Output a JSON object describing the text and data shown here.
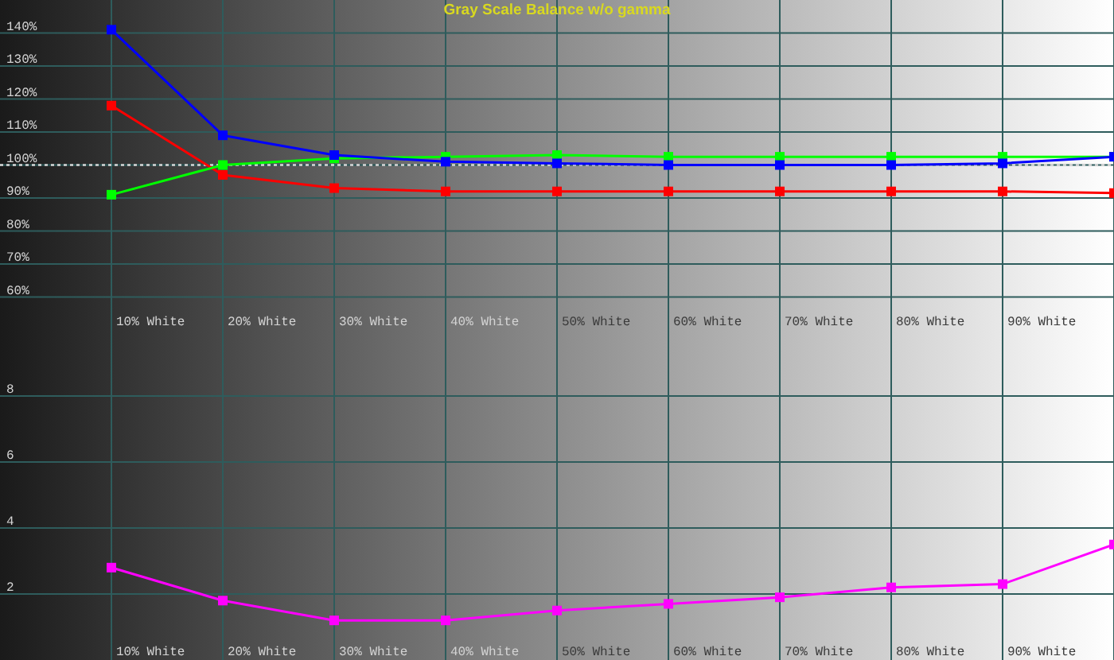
{
  "chart_data": [
    {
      "type": "line",
      "title": "Gray Scale Balance w/o gamma",
      "categories": [
        "10% White",
        "20% White",
        "30% White",
        "40% White",
        "50% White",
        "60% White",
        "70% White",
        "80% White",
        "90% White",
        null
      ],
      "series": [
        {
          "color": "#ff0000",
          "values": [
            118,
            97,
            93,
            92,
            92,
            92,
            92,
            92,
            92,
            91.5
          ]
        },
        {
          "color": "#00ff00",
          "values": [
            91,
            100,
            102,
            102.5,
            103,
            102.5,
            102.5,
            102.5,
            102.5,
            102.5
          ]
        },
        {
          "color": "#0000ff",
          "values": [
            141,
            109,
            103,
            101,
            100.5,
            100,
            100,
            100,
            100.5,
            102.5
          ]
        }
      ],
      "ylim": [
        50,
        150
      ],
      "yticks": [
        {
          "value": 60,
          "label": "60%"
        },
        {
          "value": 70,
          "label": "70%"
        },
        {
          "value": 80,
          "label": "80%"
        },
        {
          "value": 90,
          "label": "90%"
        },
        {
          "value": 100,
          "label": "100%"
        },
        {
          "value": 110,
          "label": "110%"
        },
        {
          "value": 120,
          "label": "120%"
        },
        {
          "value": 130,
          "label": "130%"
        },
        {
          "value": 140,
          "label": "140%"
        }
      ],
      "grid": true,
      "marker": "square",
      "line_style": "solid",
      "ref_lines": [
        {
          "axis": "y",
          "value": 100,
          "color": "#d8d8d8",
          "line_style": "dotted"
        }
      ]
    },
    {
      "type": "line",
      "categories": [
        "10% White",
        "20% White",
        "30% White",
        "40% White",
        "50% White",
        "60% White",
        "70% White",
        "80% White",
        "90% White",
        null
      ],
      "series": [
        {
          "color": "#ff00ff",
          "values": [
            2.8,
            1.8,
            1.2,
            1.2,
            1.5,
            1.7,
            1.9,
            2.2,
            2.3,
            3.5
          ]
        }
      ],
      "ylim": [
        0,
        10
      ],
      "yticks": [
        2,
        4,
        6,
        8
      ],
      "grid": true,
      "marker": "square",
      "line_style": "solid"
    }
  ]
}
